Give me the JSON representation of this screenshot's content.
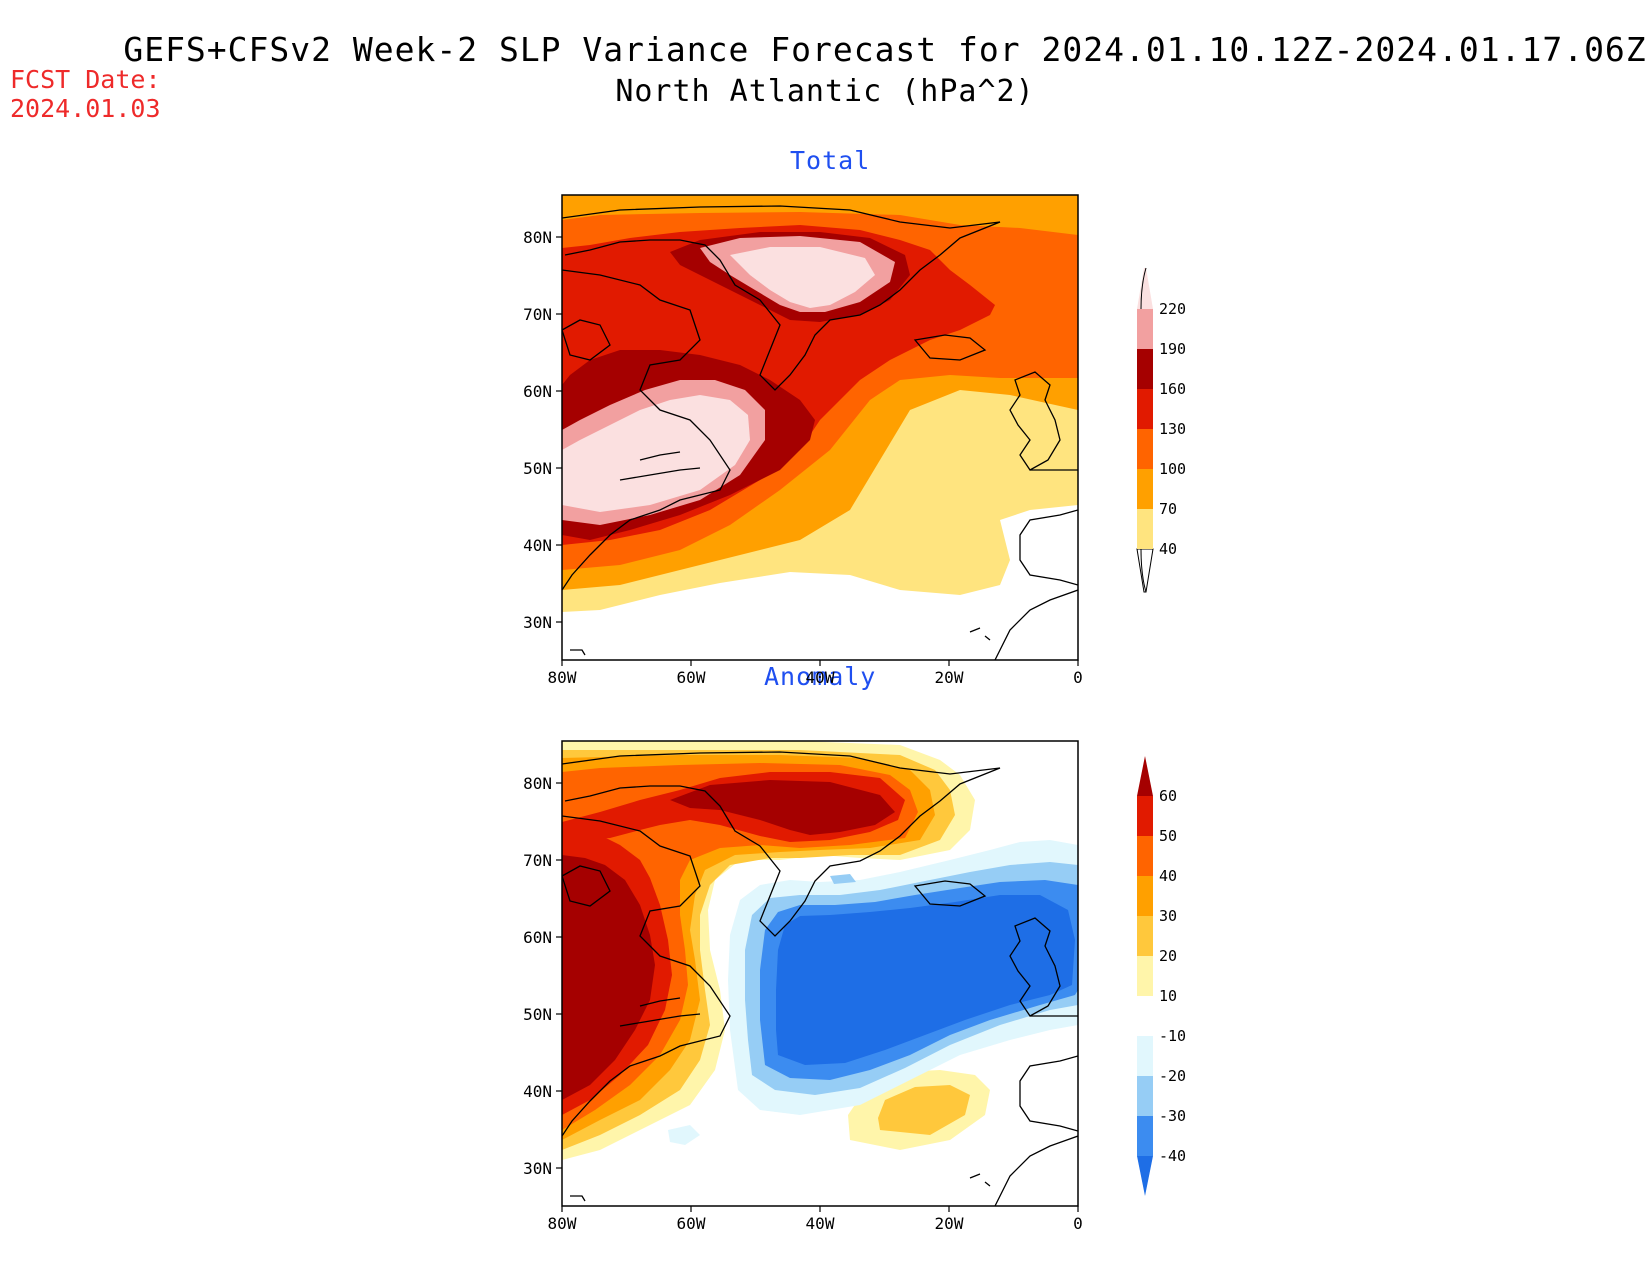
{
  "header": {
    "title_line1": "GEFS+CFSv2 Week-2 SLP Variance Forecast for 2024.01.10.12Z-2024.01.17.06Z",
    "title_line2": "North Atlantic (hPa^2)",
    "fcst_label": "FCST Date:",
    "fcst_date": "2024.01.03"
  },
  "panels": {
    "total": {
      "title": "Total",
      "lat_labels": [
        "80N",
        "70N",
        "60N",
        "50N",
        "40N",
        "30N"
      ],
      "lon_labels": [
        "80W",
        "60W",
        "40W",
        "20W",
        "0"
      ],
      "colorbar_labels": [
        "220",
        "190",
        "160",
        "130",
        "100",
        "70",
        "40"
      ]
    },
    "anomaly": {
      "title": "Anomaly",
      "lat_labels": [
        "80N",
        "70N",
        "60N",
        "50N",
        "40N",
        "30N"
      ],
      "lon_labels": [
        "80W",
        "60W",
        "40W",
        "20W",
        "0"
      ],
      "colorbar_labels": [
        "60",
        "50",
        "40",
        "30",
        "20",
        "10",
        "-10",
        "-20",
        "-30",
        "-40"
      ]
    }
  },
  "colors": {
    "total_scale": [
      "#ffe47f",
      "#ffa000",
      "#ff6400",
      "#e11a00",
      "#a50000",
      "#f2a0a0",
      "#fbe0e0"
    ],
    "anomaly_scale": [
      "#1e6ee6",
      "#3c8cf0",
      "#96cdf5",
      "#e1f7fd",
      "#ffffff",
      "#fff5aa",
      "#ffc83c",
      "#ffa000",
      "#ff6400",
      "#e11a00",
      "#a50000"
    ],
    "title_blue": "#1f4ff0",
    "fcst_red": "#ee2a2a"
  }
}
